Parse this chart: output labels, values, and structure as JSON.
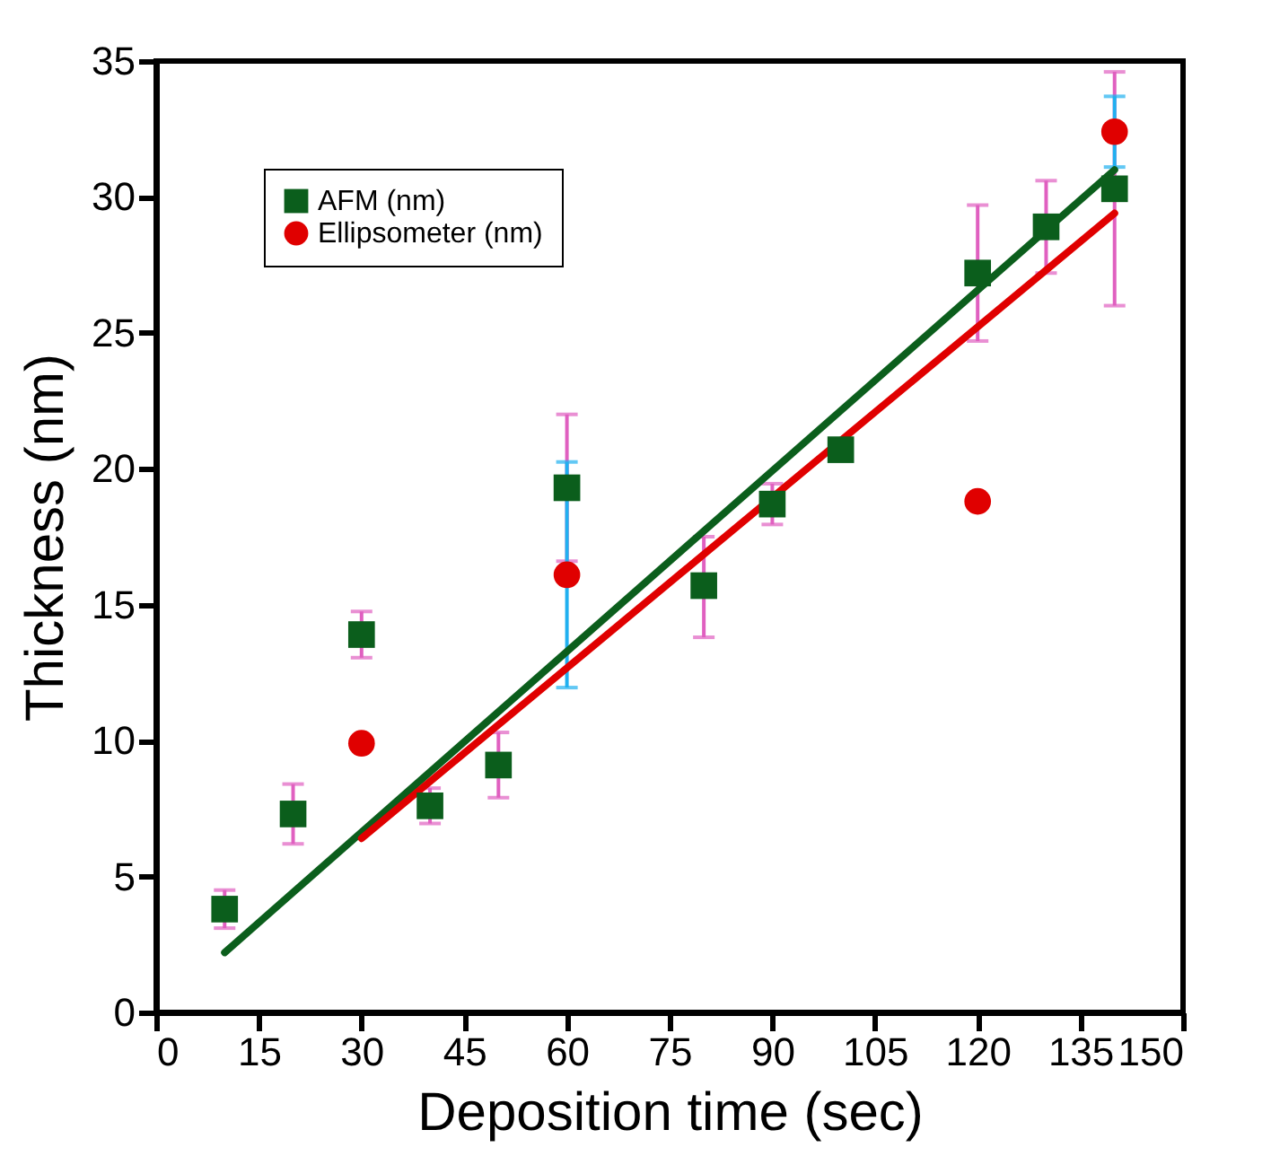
{
  "chart_data": {
    "type": "scatter",
    "xlabel": "Deposition time (sec)",
    "ylabel": "Thickness (nm)",
    "xlim": [
      0,
      150
    ],
    "ylim": [
      0,
      35
    ],
    "xticks": [
      0,
      15,
      30,
      45,
      60,
      75,
      90,
      105,
      120,
      135,
      150
    ],
    "yticks": [
      0,
      5,
      10,
      15,
      20,
      25,
      30,
      35
    ],
    "grid": false,
    "legend": "top left",
    "series": [
      {
        "name": "AFM (nm)",
        "marker": "square",
        "color": "#0b5e1c",
        "x": [
          10,
          20,
          30,
          40,
          50,
          60,
          80,
          90,
          100,
          120,
          130,
          140
        ],
        "values": [
          3.8,
          7.3,
          13.9,
          7.6,
          9.1,
          19.3,
          15.7,
          18.7,
          20.7,
          27.2,
          28.9,
          30.3
        ],
        "errors": [
          0.7,
          1.1,
          0.85,
          0.65,
          1.2,
          2.7,
          [
            13.8,
            17.5
          ],
          0.75,
          null,
          2.5,
          1.7,
          4.3
        ]
      },
      {
        "name": "Ellipsometer (nm)",
        "marker": "circle",
        "color": "#e00000",
        "x": [
          30,
          60,
          120,
          140
        ],
        "values": [
          9.9,
          16.1,
          18.8,
          32.4
        ],
        "errors": [
          null,
          4.15,
          null,
          1.3
        ]
      },
      {
        "type": "line",
        "color": "#0b5e1c",
        "x": [
          10,
          140
        ],
        "values": [
          2.2,
          31.0
        ]
      },
      {
        "type": "line",
        "color": "#e00000",
        "x": [
          30,
          140
        ],
        "values": [
          6.4,
          29.4
        ]
      }
    ]
  }
}
